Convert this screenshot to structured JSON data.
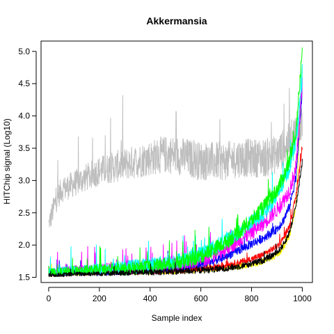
{
  "chart_data": {
    "type": "line",
    "title": "Akkermansia",
    "xlabel": "Sample index",
    "ylabel": "HITChip signal (Log10)",
    "xlim": [
      -30,
      1040
    ],
    "ylim": [
      1.42,
      5.16
    ],
    "x_ticks": [
      0,
      200,
      400,
      600,
      800,
      1000
    ],
    "y_ticks": [
      1.5,
      2.0,
      2.5,
      3.0,
      3.5,
      4.0,
      4.5,
      5.0
    ],
    "x_tick_labels": [
      "0",
      "200",
      "400",
      "600",
      "800",
      "1000"
    ],
    "y_tick_labels": [
      "1.5",
      "2.0",
      "2.5",
      "3.0",
      "3.5",
      "4.0",
      "4.5",
      "5.0"
    ],
    "n_points": 1001,
    "grid": false,
    "legend": "none",
    "series_colors": [
      "#bebebe",
      "#ffff00",
      "#ff0000",
      "#0000ff",
      "#ff00ff",
      "#00ffff",
      "#00ff00",
      "#000000"
    ],
    "series": [
      {
        "color": "#bebebe",
        "x": [
          0,
          25,
          50,
          100,
          150,
          200,
          250,
          300,
          350,
          400,
          450,
          500,
          550,
          600,
          650,
          700,
          750,
          800,
          850,
          900,
          950,
          1000
        ],
        "y": [
          2.3,
          2.65,
          2.85,
          2.95,
          3.05,
          3.15,
          3.2,
          3.25,
          3.3,
          3.35,
          3.4,
          3.4,
          3.35,
          3.3,
          3.3,
          3.3,
          3.35,
          3.35,
          3.35,
          3.4,
          3.6,
          3.9
        ],
        "noise": 0.3
      },
      {
        "color": "#ffff00",
        "x": [
          0,
          100,
          200,
          300,
          400,
          500,
          550,
          600,
          650,
          700,
          750,
          800,
          850,
          900,
          925,
          950,
          975,
          1000
        ],
        "y": [
          1.54,
          1.56,
          1.57,
          1.58,
          1.59,
          1.6,
          1.61,
          1.62,
          1.63,
          1.65,
          1.67,
          1.7,
          1.75,
          1.85,
          1.95,
          2.15,
          2.6,
          4.7
        ],
        "noise": 0.05
      },
      {
        "color": "#ff0000",
        "x": [
          0,
          100,
          200,
          300,
          400,
          500,
          550,
          600,
          650,
          700,
          750,
          800,
          850,
          900,
          925,
          950,
          975,
          1000
        ],
        "y": [
          1.54,
          1.56,
          1.57,
          1.58,
          1.59,
          1.61,
          1.62,
          1.64,
          1.66,
          1.69,
          1.73,
          1.78,
          1.86,
          1.98,
          2.1,
          2.3,
          2.75,
          3.5
        ],
        "noise": 0.05
      },
      {
        "color": "#0000ff",
        "x": [
          0,
          100,
          200,
          300,
          400,
          500,
          550,
          600,
          650,
          700,
          750,
          800,
          850,
          900,
          925,
          950,
          975,
          1000
        ],
        "y": [
          1.55,
          1.57,
          1.58,
          1.6,
          1.62,
          1.65,
          1.67,
          1.7,
          1.75,
          1.83,
          1.92,
          2.02,
          2.12,
          2.25,
          2.38,
          2.6,
          3.05,
          4.4
        ],
        "noise": 0.07
      },
      {
        "color": "#ff00ff",
        "x": [
          0,
          100,
          200,
          300,
          400,
          500,
          550,
          600,
          650,
          700,
          750,
          800,
          850,
          900,
          925,
          950,
          975,
          1000
        ],
        "y": [
          1.56,
          1.6,
          1.62,
          1.64,
          1.66,
          1.7,
          1.73,
          1.78,
          1.85,
          1.95,
          2.08,
          2.2,
          2.35,
          2.55,
          2.68,
          2.85,
          3.2,
          4.5
        ],
        "noise": 0.12
      },
      {
        "color": "#00ffff",
        "x": [
          0,
          100,
          200,
          300,
          400,
          500,
          550,
          600,
          650,
          700,
          750,
          800,
          850,
          900,
          925,
          950,
          975,
          1000
        ],
        "y": [
          1.57,
          1.6,
          1.63,
          1.66,
          1.7,
          1.75,
          1.8,
          1.87,
          1.96,
          2.08,
          2.2,
          2.35,
          2.5,
          2.75,
          2.95,
          3.2,
          3.6,
          4.6
        ],
        "noise": 0.12
      },
      {
        "color": "#00ff00",
        "x": [
          0,
          100,
          200,
          300,
          400,
          500,
          550,
          600,
          650,
          700,
          750,
          800,
          850,
          900,
          925,
          950,
          975,
          1000
        ],
        "y": [
          1.56,
          1.59,
          1.61,
          1.63,
          1.66,
          1.71,
          1.76,
          1.83,
          1.93,
          2.05,
          2.2,
          2.38,
          2.6,
          2.85,
          3.05,
          3.3,
          3.75,
          5.0
        ],
        "noise": 0.12
      },
      {
        "color": "#000000",
        "x": [
          0,
          100,
          200,
          300,
          400,
          500,
          550,
          600,
          650,
          700,
          750,
          800,
          850,
          900,
          925,
          950,
          975,
          1000
        ],
        "y": [
          1.53,
          1.55,
          1.56,
          1.57,
          1.58,
          1.59,
          1.6,
          1.61,
          1.62,
          1.64,
          1.67,
          1.71,
          1.77,
          1.88,
          2.0,
          2.2,
          2.6,
          3.3
        ],
        "noise": 0.05
      }
    ]
  }
}
